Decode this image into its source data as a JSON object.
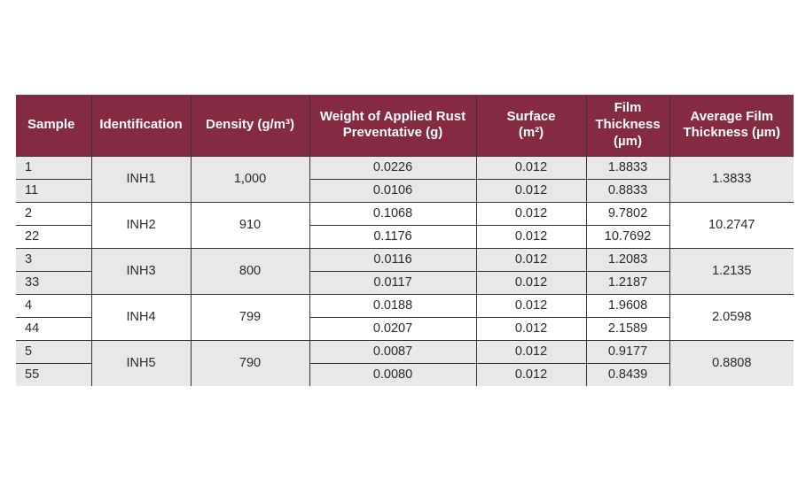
{
  "page": {
    "background": "#ffffff"
  },
  "table": {
    "colors": {
      "header_bg": "#842a43",
      "header_text": "#ffffff",
      "shaded_row_bg": "#e8e8e8",
      "plain_row_bg": "#ffffff",
      "border": "#333333",
      "body_text": "#2a2a2a"
    },
    "headers": {
      "sample": "Sample",
      "identification": "Identification",
      "density": "Density (g/m³)",
      "weight": "Weight of Applied Rust\nPreventative (g)",
      "surface": "Surface\n(m²)",
      "film": "Film\nThickness\n(µm)",
      "average": "Average Film\nThickness (µm)"
    },
    "groups": [
      {
        "samples": [
          "1",
          "11"
        ],
        "identification": "INH1",
        "density": "1,000",
        "rows": [
          {
            "weight": "0.0226",
            "surface": "0.012",
            "film": "1.8833"
          },
          {
            "weight": "0.0106",
            "surface": "0.012",
            "film": "0.8833"
          }
        ],
        "average": "1.3833"
      },
      {
        "samples": [
          "2",
          "22"
        ],
        "identification": "INH2",
        "density": "910",
        "rows": [
          {
            "weight": "0.1068",
            "surface": "0.012",
            "film": "9.7802"
          },
          {
            "weight": "0.1176",
            "surface": "0.012",
            "film": "10.7692"
          }
        ],
        "average": "10.2747"
      },
      {
        "samples": [
          "3",
          "33"
        ],
        "identification": "INH3",
        "density": "800",
        "rows": [
          {
            "weight": "0.0116",
            "surface": "0.012",
            "film": "1.2083"
          },
          {
            "weight": "0.0117",
            "surface": "0.012",
            "film": "1.2187"
          }
        ],
        "average": "1.2135"
      },
      {
        "samples": [
          "4",
          "44"
        ],
        "identification": "INH4",
        "density": "799",
        "rows": [
          {
            "weight": "0.0188",
            "surface": "0.012",
            "film": "1.9608"
          },
          {
            "weight": "0.0207",
            "surface": "0.012",
            "film": "2.1589"
          }
        ],
        "average": "2.0598"
      },
      {
        "samples": [
          "5",
          "55"
        ],
        "identification": "INH5",
        "density": "790",
        "rows": [
          {
            "weight": "0.0087",
            "surface": "0.012",
            "film": "0.9177"
          },
          {
            "weight": "0.0080",
            "surface": "0.012",
            "film": "0.8439"
          }
        ],
        "average": "0.8808"
      }
    ]
  }
}
